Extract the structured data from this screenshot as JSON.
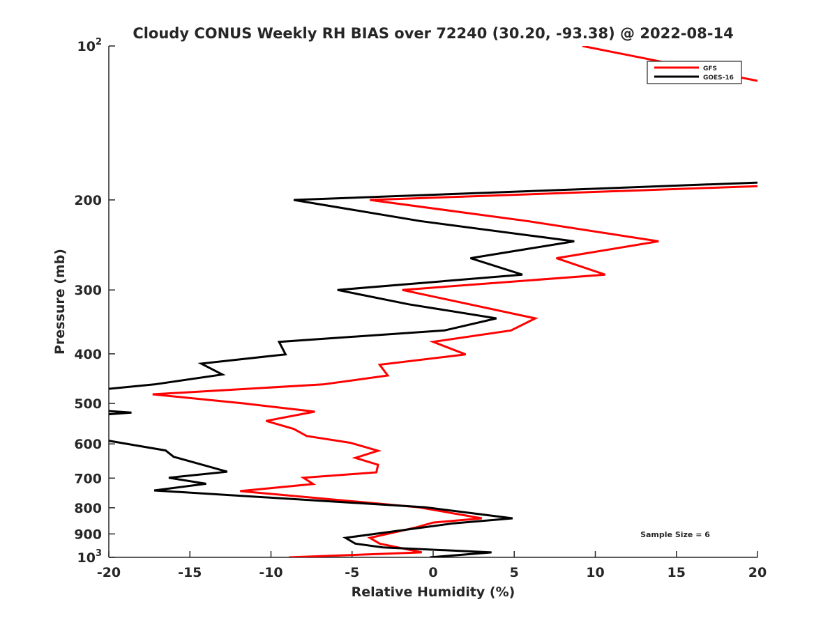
{
  "chart_data": {
    "type": "line",
    "title": "Cloudy CONUS Weekly RH BIAS over 72240 (30.20, -93.38) @ 2022-08-14",
    "xlabel": "Relative Humidity (%)",
    "ylabel": "Pressure (mb)",
    "xlim": [
      -20,
      20
    ],
    "ylim": [
      100,
      1000
    ],
    "yscale": "log",
    "y_reversed": true,
    "x_ticks": [
      -20,
      -15,
      -10,
      -5,
      0,
      5,
      10,
      15,
      20
    ],
    "x_tick_labels": [
      "-20",
      "-15",
      "-10",
      "-5",
      "0",
      "5",
      "10",
      "15",
      "20"
    ],
    "y_ticks": [
      100,
      200,
      300,
      400,
      500,
      600,
      700,
      800,
      900,
      1000
    ],
    "y_tick_labels": [
      {
        "base": "10",
        "exp": "2"
      },
      "200",
      "300",
      "400",
      "500",
      "600",
      "700",
      "800",
      "900",
      {
        "base": "10",
        "exp": "3"
      }
    ],
    "grid": false,
    "legend_position": "top-right",
    "annotation": "Sample Size = 6",
    "series": [
      {
        "name": "GFS",
        "color": "#ff0000",
        "points": [
          [
            9.2,
            100
          ],
          [
            20,
            117
          ],
          [
            26,
            150
          ],
          [
            20,
            188
          ],
          [
            -3.9,
            200
          ],
          [
            5.8,
            220
          ],
          [
            13.9,
            241
          ],
          [
            7.6,
            260
          ],
          [
            10.6,
            280
          ],
          [
            -1.9,
            300
          ],
          [
            6.3,
            341
          ],
          [
            4.8,
            360
          ],
          [
            0.0,
            379
          ],
          [
            2.0,
            401
          ],
          [
            -3.3,
            420
          ],
          [
            -2.8,
            441
          ],
          [
            -6.8,
            459
          ],
          [
            -17.3,
            480
          ],
          [
            -11.7,
            500
          ],
          [
            -7.3,
            519
          ],
          [
            -10.3,
            541
          ],
          [
            -8.6,
            561
          ],
          [
            -7.8,
            579
          ],
          [
            -5.1,
            597
          ],
          [
            -3.4,
            619
          ],
          [
            -4.8,
            639
          ],
          [
            -3.4,
            659
          ],
          [
            -3.5,
            682
          ],
          [
            -8.0,
            699
          ],
          [
            -7.4,
            719
          ],
          [
            -11.9,
            742
          ],
          [
            -0.9,
            798
          ],
          [
            3.0,
            839
          ],
          [
            0.0,
            855
          ],
          [
            -1.1,
            875
          ],
          [
            -3.9,
            916
          ],
          [
            -3.3,
            940
          ],
          [
            -0.7,
            978
          ],
          [
            -8.9,
            1000
          ]
        ]
      },
      {
        "name": "GOES-16",
        "color": "#000000",
        "points": [
          [
            24,
            180
          ],
          [
            20,
            185
          ],
          [
            -8.6,
            200
          ],
          [
            -0.8,
            220
          ],
          [
            8.7,
            241
          ],
          [
            2.3,
            260
          ],
          [
            5.5,
            280
          ],
          [
            -5.9,
            300
          ],
          [
            -1.5,
            320
          ],
          [
            3.9,
            341
          ],
          [
            0.7,
            360
          ],
          [
            -9.5,
            379
          ],
          [
            -9.1,
            401
          ],
          [
            -14.3,
            418
          ],
          [
            -13.0,
            439
          ],
          [
            -17.2,
            459
          ],
          [
            -22,
            475
          ],
          [
            -21,
            515
          ],
          [
            -18.6,
            521
          ],
          [
            -21,
            528
          ],
          [
            -23,
            570
          ],
          [
            -16.5,
            618
          ],
          [
            -16.0,
            636
          ],
          [
            -12.7,
            680
          ],
          [
            -16.3,
            699
          ],
          [
            -14.0,
            718
          ],
          [
            -17.2,
            740
          ],
          [
            -0.5,
            798
          ],
          [
            4.9,
            839
          ],
          [
            1.25,
            858
          ],
          [
            -5.4,
            916
          ],
          [
            -4.8,
            940
          ],
          [
            -3.1,
            956
          ],
          [
            3.6,
            978
          ],
          [
            -0.2,
            1000
          ]
        ]
      }
    ]
  }
}
